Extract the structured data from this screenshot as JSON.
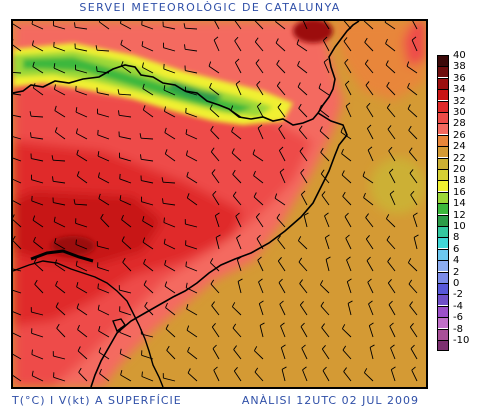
{
  "header": {
    "title": "SERVEI METEOROLÒGIC DE CATALUNYA"
  },
  "footer": {
    "variable": "T(°C) I V(kt) A SUPERFÍCIE",
    "analysis": "ANÀLISI 12UTC 02 JUL 2009"
  },
  "legend": {
    "levels": [
      {
        "label": "40",
        "color": "#3c0a0a"
      },
      {
        "label": "38",
        "color": "#6e0e0e"
      },
      {
        "label": "36",
        "color": "#9c1010"
      },
      {
        "label": "34",
        "color": "#c81414"
      },
      {
        "label": "32",
        "color": "#e02a2a"
      },
      {
        "label": "30",
        "color": "#ee4c48"
      },
      {
        "label": "28",
        "color": "#f46a60"
      },
      {
        "label": "26",
        "color": "#e8863a"
      },
      {
        "label": "24",
        "color": "#d49a34"
      },
      {
        "label": "22",
        "color": "#ccb034"
      },
      {
        "label": "20",
        "color": "#d6d034"
      },
      {
        "label": "18",
        "color": "#f0f030"
      },
      {
        "label": "16",
        "color": "#9cd838"
      },
      {
        "label": "14",
        "color": "#3cb83c"
      },
      {
        "label": "12",
        "color": "#2c9c48"
      },
      {
        "label": "10",
        "color": "#34c8a0"
      },
      {
        "label": "8",
        "color": "#40d8d8"
      },
      {
        "label": "6",
        "color": "#6cc8f0"
      },
      {
        "label": "4",
        "color": "#8cacf0"
      },
      {
        "label": "2",
        "color": "#7c8ce8"
      },
      {
        "label": "0",
        "color": "#5858d8"
      },
      {
        "label": "-2",
        "color": "#7050c8"
      },
      {
        "label": "-4",
        "color": "#9c50c8"
      },
      {
        "label": "-6",
        "color": "#c070c8"
      },
      {
        "label": "-8",
        "color": "#a85098"
      },
      {
        "label": "-10",
        "color": "#7c3070"
      }
    ]
  },
  "map": {
    "background_temperature_color": "#d49a34",
    "hot_interior_color": "#e02a2a",
    "coastline_color": "#000000",
    "wind_barb_color": "#000000"
  }
}
